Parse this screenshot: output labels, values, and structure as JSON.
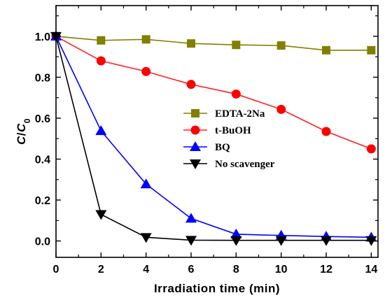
{
  "chart_data": {
    "type": "line",
    "xlabel": "Irradiation time (min)",
    "ylabel": {
      "main": "C",
      "slash": "/",
      "sub_base": "C",
      "subscript": "0"
    },
    "xlim": [
      0,
      14.3
    ],
    "ylim": [
      -0.08,
      1.15
    ],
    "x_ticks": [
      "0",
      "2",
      "4",
      "6",
      "8",
      "10",
      "12",
      "14"
    ],
    "y_ticks": [
      "0.0",
      "0.2",
      "0.4",
      "0.6",
      "0.8",
      "1.0"
    ],
    "grid": false,
    "legend_position": "middle-right",
    "x": [
      0,
      2,
      4,
      6,
      8,
      10,
      12,
      14
    ],
    "series": [
      {
        "name": "EDTA-2Na",
        "marker": "square",
        "color": "#808000",
        "marker_color": "#808000",
        "values": [
          1.0,
          0.98,
          0.985,
          0.965,
          0.958,
          0.955,
          0.932,
          0.932
        ]
      },
      {
        "name": "t-BuOH",
        "marker": "circle",
        "color": "#ff2020",
        "marker_color": "#ff0000",
        "values": [
          1.0,
          0.88,
          0.828,
          0.765,
          0.718,
          0.643,
          0.535,
          0.45
        ]
      },
      {
        "name": "BQ",
        "marker": "triangle-up",
        "color": "#0000ff",
        "marker_color": "#0000ff",
        "values": [
          1.0,
          0.538,
          0.278,
          0.11,
          0.033,
          0.027,
          0.022,
          0.018
        ]
      },
      {
        "name": "No scavenger",
        "marker": "triangle-down",
        "color": "#000000",
        "marker_color": "#000000",
        "values": [
          1.0,
          0.13,
          0.018,
          0.004,
          0.003,
          0.003,
          0.003,
          0.003
        ]
      }
    ]
  }
}
